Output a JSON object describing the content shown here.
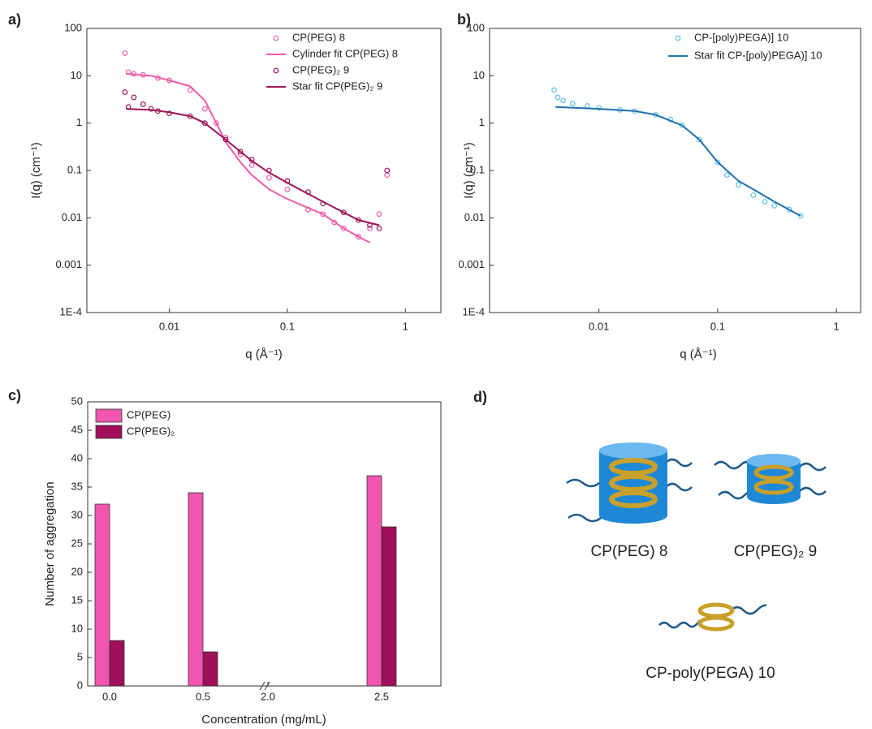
{
  "chart_data": [
    {
      "type": "scatter",
      "panel_label": "a)",
      "log_x": true,
      "log_y": true,
      "xlabel": "q (Å⁻¹)",
      "ylabel": "I(q) (cm⁻¹)",
      "xlim": [
        0.002,
        2
      ],
      "ylim": [
        0.0001,
        100
      ],
      "xticks": [
        0.01,
        0.1,
        1
      ],
      "yticks": [
        {
          "value": 0.0001,
          "label": "1E-4"
        },
        0.001,
        0.01,
        0.1,
        1,
        10,
        100
      ],
      "series": [
        {
          "name": "CP(PEG) 8",
          "mode": "markers",
          "color": "#ee5aa8",
          "x": [
            0.0042,
            0.0045,
            0.005,
            0.006,
            0.008,
            0.01,
            0.015,
            0.02,
            0.025,
            0.03,
            0.04,
            0.05,
            0.07,
            0.1,
            0.15,
            0.2,
            0.25,
            0.3,
            0.4,
            0.5,
            0.6,
            0.7
          ],
          "values": [
            30,
            12,
            11,
            10.5,
            9,
            8,
            5,
            2,
            1,
            0.5,
            0.22,
            0.13,
            0.07,
            0.04,
            0.015,
            0.012,
            0.008,
            0.006,
            0.004,
            0.006,
            0.012,
            0.08
          ]
        },
        {
          "name": "Cylinder fit CP(PEG) 8",
          "mode": "line",
          "color": "#ee5aa8",
          "x": [
            0.0043,
            0.007,
            0.01,
            0.015,
            0.02,
            0.025,
            0.03,
            0.04,
            0.05,
            0.07,
            0.1,
            0.2,
            0.3,
            0.4,
            0.5
          ],
          "values": [
            11,
            10,
            8,
            6,
            3,
            1,
            0.4,
            0.15,
            0.08,
            0.04,
            0.025,
            0.012,
            0.006,
            0.004,
            0.003
          ]
        },
        {
          "name": "CP(PEG)₂ 9",
          "mode": "markers",
          "color": "#9c1458",
          "x": [
            0.0042,
            0.0045,
            0.005,
            0.006,
            0.007,
            0.008,
            0.01,
            0.015,
            0.02,
            0.03,
            0.04,
            0.05,
            0.07,
            0.1,
            0.15,
            0.2,
            0.3,
            0.4,
            0.5,
            0.6,
            0.7
          ],
          "values": [
            4.5,
            2.2,
            3.5,
            2.5,
            2,
            1.8,
            1.6,
            1.4,
            1,
            0.45,
            0.25,
            0.17,
            0.1,
            0.06,
            0.035,
            0.02,
            0.013,
            0.009,
            0.007,
            0.006,
            0.1
          ]
        },
        {
          "name": "Star fit CP(PEG)₂ 9",
          "mode": "line",
          "color": "#9c1458",
          "x": [
            0.0043,
            0.007,
            0.01,
            0.015,
            0.02,
            0.03,
            0.04,
            0.05,
            0.07,
            0.1,
            0.15,
            0.2,
            0.3,
            0.4,
            0.6
          ],
          "values": [
            2,
            1.9,
            1.7,
            1.4,
            1,
            0.45,
            0.25,
            0.16,
            0.09,
            0.055,
            0.032,
            0.022,
            0.013,
            0.009,
            0.007
          ]
        }
      ]
    },
    {
      "type": "scatter",
      "panel_label": "b)",
      "log_x": true,
      "log_y": true,
      "xlabel": "q (Å⁻¹)",
      "ylabel": "I(q) (cm⁻¹)",
      "xlim": [
        0.0012,
        1.6
      ],
      "ylim": [
        0.0001,
        100
      ],
      "xticks": [
        0.01,
        0.1,
        1
      ],
      "yticks": [
        {
          "value": 0.0001,
          "label": "1E-4"
        },
        0.001,
        0.01,
        0.1,
        1,
        10,
        100
      ],
      "series": [
        {
          "name": "CP-[poly)PEGA)] 10",
          "mode": "markers",
          "color": "#5cc2ec",
          "x": [
            0.0042,
            0.0045,
            0.005,
            0.006,
            0.008,
            0.01,
            0.015,
            0.02,
            0.03,
            0.04,
            0.05,
            0.07,
            0.1,
            0.12,
            0.15,
            0.2,
            0.25,
            0.3,
            0.4,
            0.5
          ],
          "values": [
            5,
            3.5,
            3,
            2.6,
            2.3,
            2.1,
            1.9,
            1.8,
            1.5,
            1.2,
            0.9,
            0.45,
            0.15,
            0.08,
            0.05,
            0.03,
            0.022,
            0.018,
            0.015,
            0.011
          ]
        },
        {
          "name": "Star fit CP-[poly)PEGA)] 10",
          "mode": "line",
          "color": "#1f6fb0",
          "x": [
            0.0043,
            0.01,
            0.02,
            0.03,
            0.05,
            0.07,
            0.1,
            0.15,
            0.2,
            0.3,
            0.5
          ],
          "values": [
            2.2,
            2,
            1.8,
            1.5,
            0.9,
            0.45,
            0.15,
            0.06,
            0.04,
            0.022,
            0.011
          ]
        }
      ]
    },
    {
      "type": "bar",
      "panel_label": "c)",
      "xlabel": "Concentration (mg/mL)",
      "ylabel": "Number of aggregation",
      "categories": [
        "0.0",
        "0.5",
        "2.0",
        "2.5"
      ],
      "ylim": [
        0,
        50
      ],
      "yticks": [
        0,
        5,
        10,
        15,
        20,
        25,
        30,
        35,
        40,
        45,
        50
      ],
      "series": [
        {
          "name": "CP(PEG)",
          "color": "#f055b0",
          "values": [
            32,
            34,
            null,
            37
          ]
        },
        {
          "name": "CP(PEG)₂",
          "color": "#a0105a",
          "values": [
            8,
            6,
            null,
            28
          ]
        }
      ]
    }
  ],
  "diagram": {
    "panel_label": "d)",
    "labels": [
      "CP(PEG) 8",
      "CP(PEG)₂ 9",
      "CP-poly(PEGA) 10"
    ]
  }
}
